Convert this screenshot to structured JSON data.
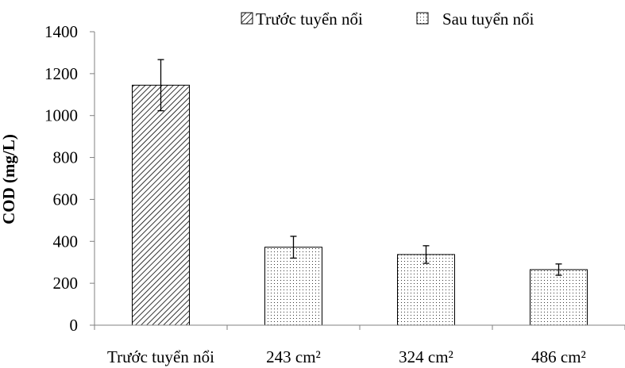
{
  "chart_data": {
    "type": "bar",
    "ylabel": "COD (mg/L)",
    "ylim": [
      0,
      1400
    ],
    "yticks": [
      0,
      200,
      400,
      600,
      800,
      1000,
      1200,
      1400
    ],
    "grid": false,
    "legend_position": "top",
    "categories": [
      "Trước tuyển nổi",
      "243 cm²",
      "324 cm²",
      "486 cm²"
    ],
    "series": [
      {
        "name": "Trước tuyển nổi",
        "pattern": "diagonal-hatch",
        "values": [
          1145,
          null,
          null,
          null
        ],
        "errors": [
          122,
          null,
          null,
          null
        ]
      },
      {
        "name": "Sau tuyển nổi",
        "pattern": "dots",
        "values": [
          null,
          372,
          337,
          265
        ],
        "errors": [
          null,
          52,
          42,
          27
        ]
      }
    ]
  }
}
